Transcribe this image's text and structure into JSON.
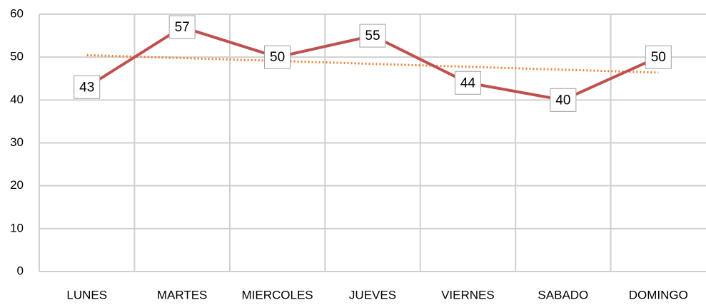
{
  "chart_data": {
    "type": "line",
    "categories": [
      "LUNES",
      "MARTES",
      "MIERCOLES",
      "JUEVES",
      "VIERNES",
      "SABADO",
      "DOMINGO"
    ],
    "series": [
      {
        "color": "#c0504d",
        "values": [
          43,
          57,
          50,
          55,
          44,
          40,
          50
        ]
      }
    ],
    "ylim": [
      0,
      60
    ],
    "yticks": [
      0,
      10,
      20,
      30,
      40,
      50,
      60
    ],
    "grid": true,
    "trendline": true,
    "trendline_color": "#ed7d31",
    "data_labels": true
  }
}
